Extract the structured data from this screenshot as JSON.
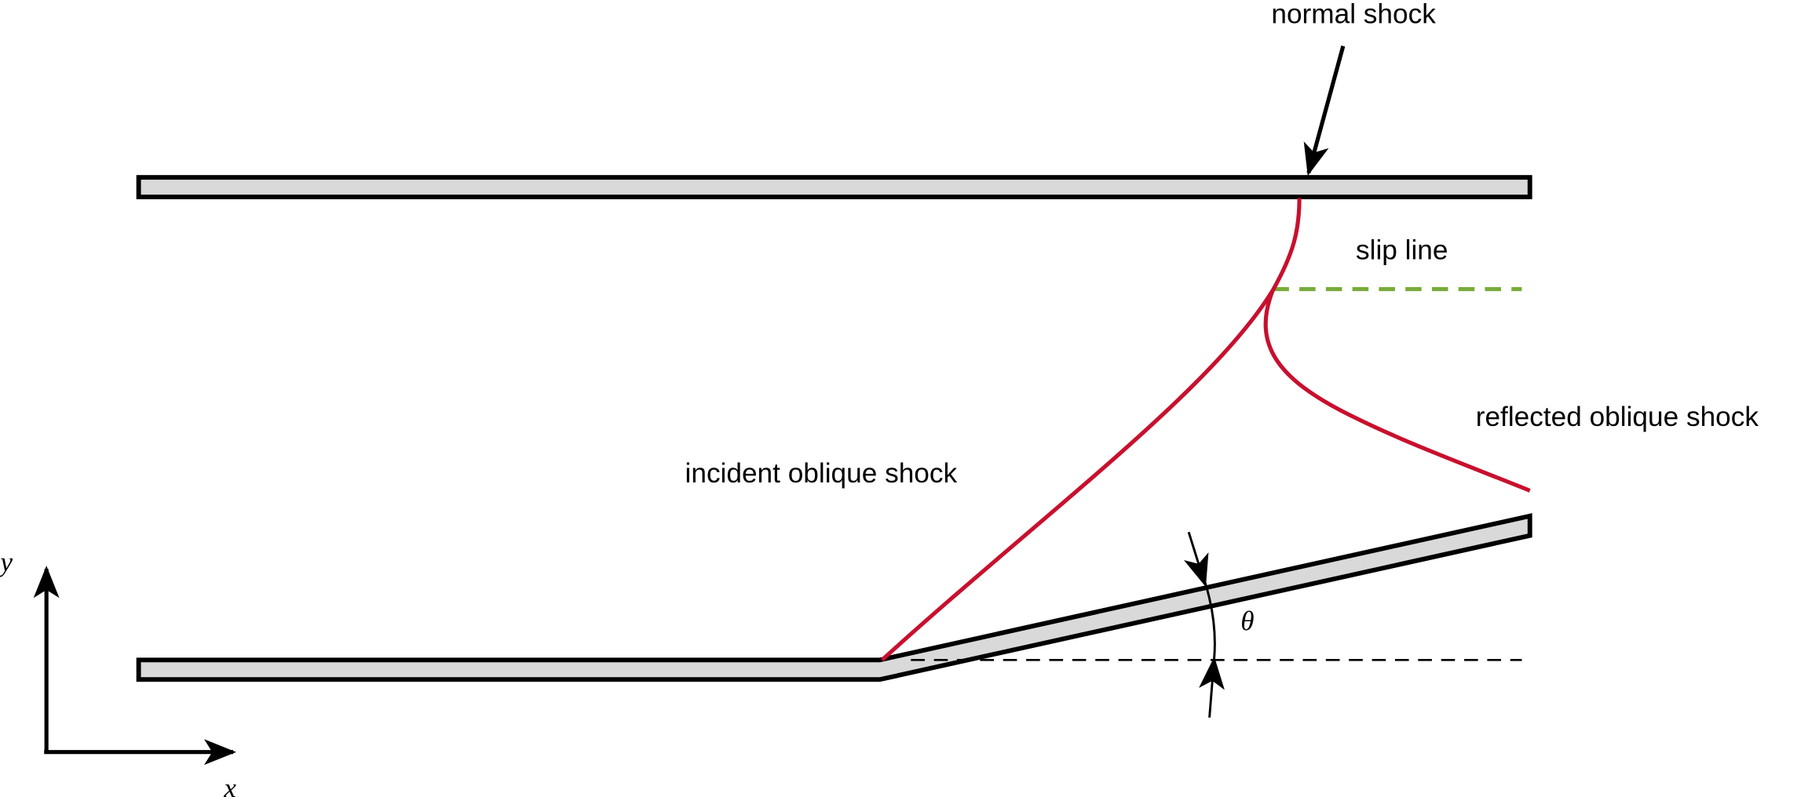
{
  "labels": {
    "normal_shock": "normal shock",
    "slip_line": "slip line",
    "reflected_shock": "reflected oblique shock",
    "incident_shock": "incident oblique shock",
    "angle": "θ",
    "x_axis": "x",
    "y_axis": "y"
  }
}
